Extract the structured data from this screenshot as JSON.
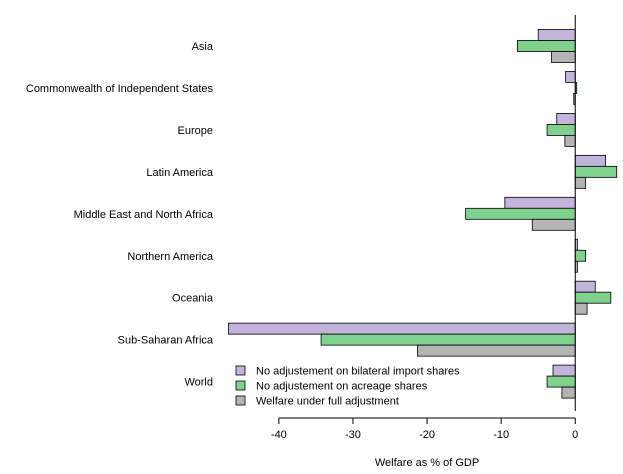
{
  "chart_data": {
    "type": "bar",
    "orientation": "horizontal",
    "title": "",
    "xlabel": "Welfare as % of GDP",
    "ylabel": "",
    "xlim": [
      -47,
      5.5
    ],
    "xticks": [
      -40,
      -30,
      -20,
      -10,
      0
    ],
    "grid": false,
    "legend_position": "bottom-left",
    "categories": [
      "Asia",
      "Commonwealth of Independent States",
      "Europe",
      "Latin America",
      "Middle East and North Africa",
      "Northern America",
      "Oceania",
      "Sub-Saharan Africa",
      "World"
    ],
    "series": [
      {
        "name": "No adjustement on bilateral import shares",
        "color": "#c3b4dc",
        "values": [
          -5.0,
          -1.3,
          -2.5,
          4.1,
          -9.5,
          0.3,
          2.7,
          -46.8,
          -3.0
        ]
      },
      {
        "name": "No adjustement on acreage shares",
        "color": "#7fd18d",
        "values": [
          -7.8,
          0.2,
          -3.8,
          5.6,
          -14.8,
          1.4,
          4.8,
          -34.3,
          -3.8
        ]
      },
      {
        "name": "Welfare under full adjustment",
        "color": "#b4b4b4",
        "values": [
          -3.2,
          -0.2,
          -1.4,
          1.4,
          -5.8,
          0.3,
          1.6,
          -21.3,
          -1.8
        ]
      }
    ]
  }
}
